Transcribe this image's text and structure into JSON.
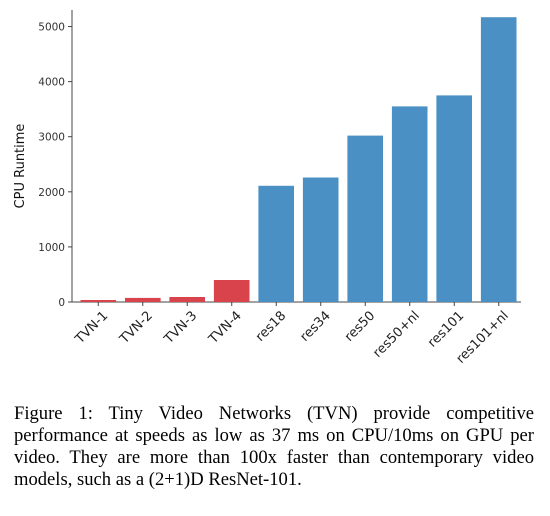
{
  "chart_data": {
    "type": "bar",
    "title": "",
    "xlabel": "",
    "ylabel": "CPU Runtime",
    "ylim": [
      0,
      5300
    ],
    "yticks": [
      0,
      1000,
      2000,
      3000,
      4000,
      5000
    ],
    "grid": false,
    "categories": [
      "TVN-1",
      "TVN-2",
      "TVN-3",
      "TVN-4",
      "res18",
      "res34",
      "res50",
      "res50+nl",
      "res101",
      "res101+nl"
    ],
    "values": [
      37,
      75,
      90,
      400,
      2110,
      2260,
      3020,
      3550,
      3750,
      5170
    ],
    "colors": [
      "#d9434b",
      "#d9434b",
      "#d9434b",
      "#d9434b",
      "#4a90c4",
      "#4a90c4",
      "#4a90c4",
      "#4a90c4",
      "#4a90c4",
      "#4a90c4"
    ]
  },
  "caption": "Figure 1: Tiny Video Networks (TVN) provide competitive performance at speeds as low as 37 ms on CPU/10ms on GPU per video. They are more than 100x faster than contemporary video models, such as a (2+1)D ResNet-101."
}
